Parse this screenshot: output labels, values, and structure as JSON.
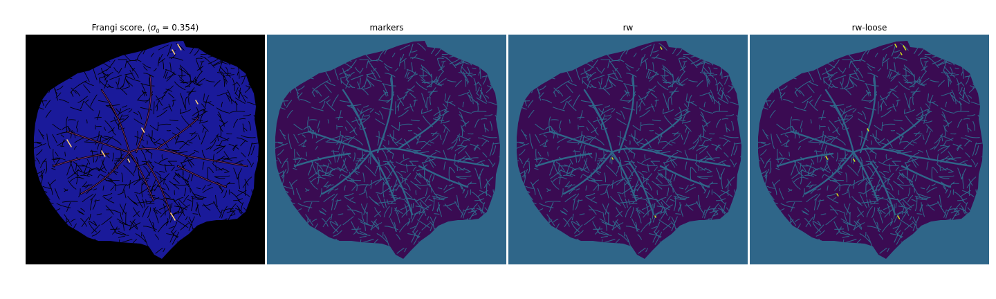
{
  "figure": {
    "panels": [
      {
        "title_prefix": "Frangi score, (",
        "title_sigma": "σ",
        "title_sub": "0",
        "title_suffix": " = 0.354)",
        "colormap": "gnuplot2",
        "background": "#000000",
        "tissue_color": "#1a1a9a",
        "mesh_color": "#000000",
        "highlight_color": "#ffd27a"
      },
      {
        "title": "markers",
        "colormap": "viridis",
        "background": "#2f6689",
        "tissue_color": "#3a0b52",
        "mesh_color": "#2f6689"
      },
      {
        "title": "rw",
        "colormap": "viridis",
        "background": "#2f6689",
        "tissue_color": "#3a0b52",
        "mesh_color": "#2f6689",
        "highlight_color": "#c8e020"
      },
      {
        "title": "rw-loose",
        "colormap": "viridis",
        "background": "#2f6689",
        "tissue_color": "#3a0b52",
        "mesh_color": "#2f6689",
        "highlight_color": "#d4e21a"
      }
    ]
  }
}
